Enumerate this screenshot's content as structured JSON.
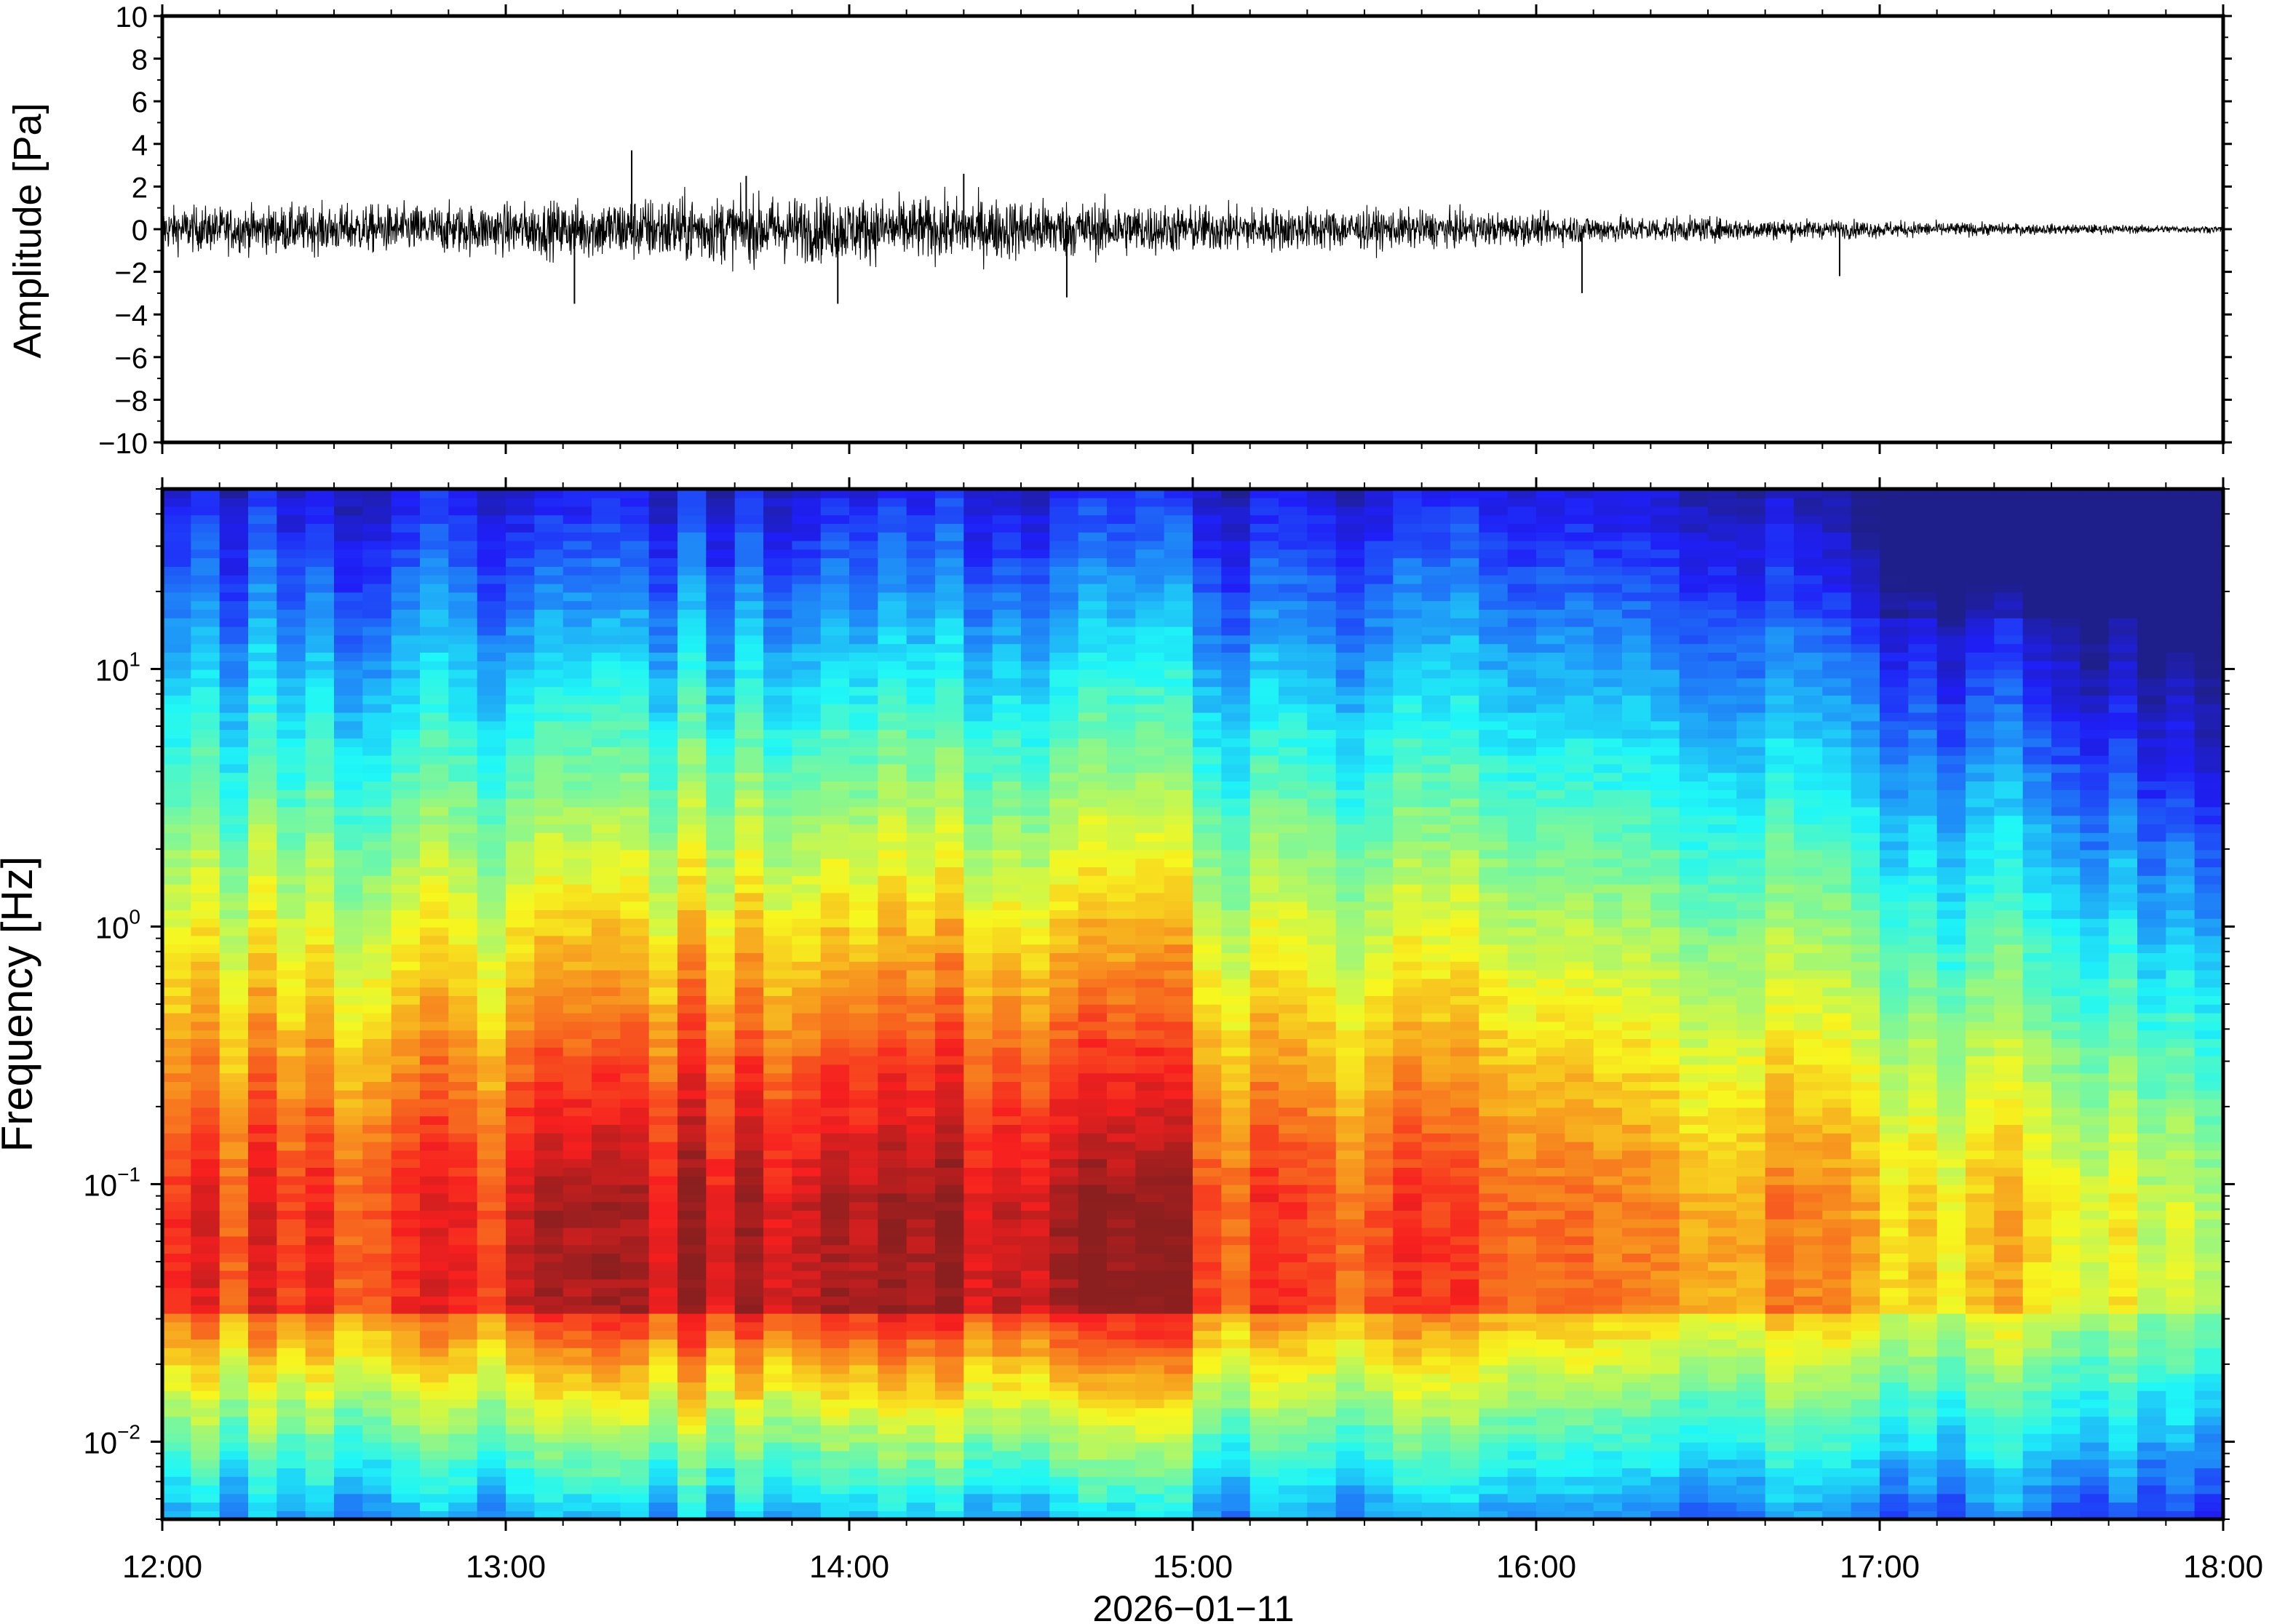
{
  "x_axis": {
    "label": "2026−01−11",
    "tick_labels": [
      "12:00",
      "13:00",
      "14:00",
      "15:00",
      "16:00",
      "17:00",
      "18:00"
    ]
  },
  "chart_data": [
    {
      "type": "line",
      "panel": "waveform",
      "title": "",
      "ylabel": "Amplitude [Pa]",
      "ylim": [
        -10,
        10
      ],
      "y_tick_labels": [
        "10",
        "8",
        "6",
        "4",
        "2",
        "0",
        "−2",
        "−4",
        "−6",
        "−8",
        "−10"
      ],
      "xlim": [
        "12:00",
        "18:00"
      ],
      "grid": false,
      "envelope": {
        "x_hours": [
          0,
          0.5,
          1.0,
          1.5,
          2.0,
          2.5,
          3.0,
          3.5,
          4.0,
          4.5,
          5.0,
          5.5,
          6.0
        ],
        "amplitude_pa": [
          1.3,
          1.4,
          1.5,
          2.0,
          1.9,
          1.8,
          1.4,
          1.2,
          0.9,
          0.7,
          0.5,
          0.3,
          0.2
        ]
      },
      "spikes": [
        {
          "x": "13:22",
          "y": 3.7
        },
        {
          "x": "13:12",
          "y": -3.5
        },
        {
          "x": "13:42",
          "y": 2.5
        },
        {
          "x": "14:20",
          "y": 2.6
        },
        {
          "x": "13:58",
          "y": -3.5
        },
        {
          "x": "14:38",
          "y": -3.2
        },
        {
          "x": "16:08",
          "y": -3.0
        },
        {
          "x": "16:53",
          "y": -2.2
        }
      ]
    },
    {
      "type": "heatmap",
      "panel": "spectrogram",
      "title": "",
      "ylabel": "Frequency [Hz]",
      "yscale": "log",
      "ylim": [
        0.005,
        50
      ],
      "y_ticks": [
        {
          "value": 0.01,
          "base": "10",
          "exp": "−2"
        },
        {
          "value": 0.1,
          "base": "10",
          "exp": "−1"
        },
        {
          "value": 1,
          "base": "10",
          "exp": "0"
        },
        {
          "value": 10,
          "base": "10",
          "exp": "1"
        }
      ],
      "xlim": [
        "12:00",
        "18:00"
      ],
      "colormap": "jet (blue = low power, red = high power)",
      "time_bins": 72,
      "freq_bins": 120,
      "notes": "Peak power near 0.03–0.3 Hz from 13:00–15:00; power decreases after 16:30, with low power above 5 Hz"
    }
  ]
}
